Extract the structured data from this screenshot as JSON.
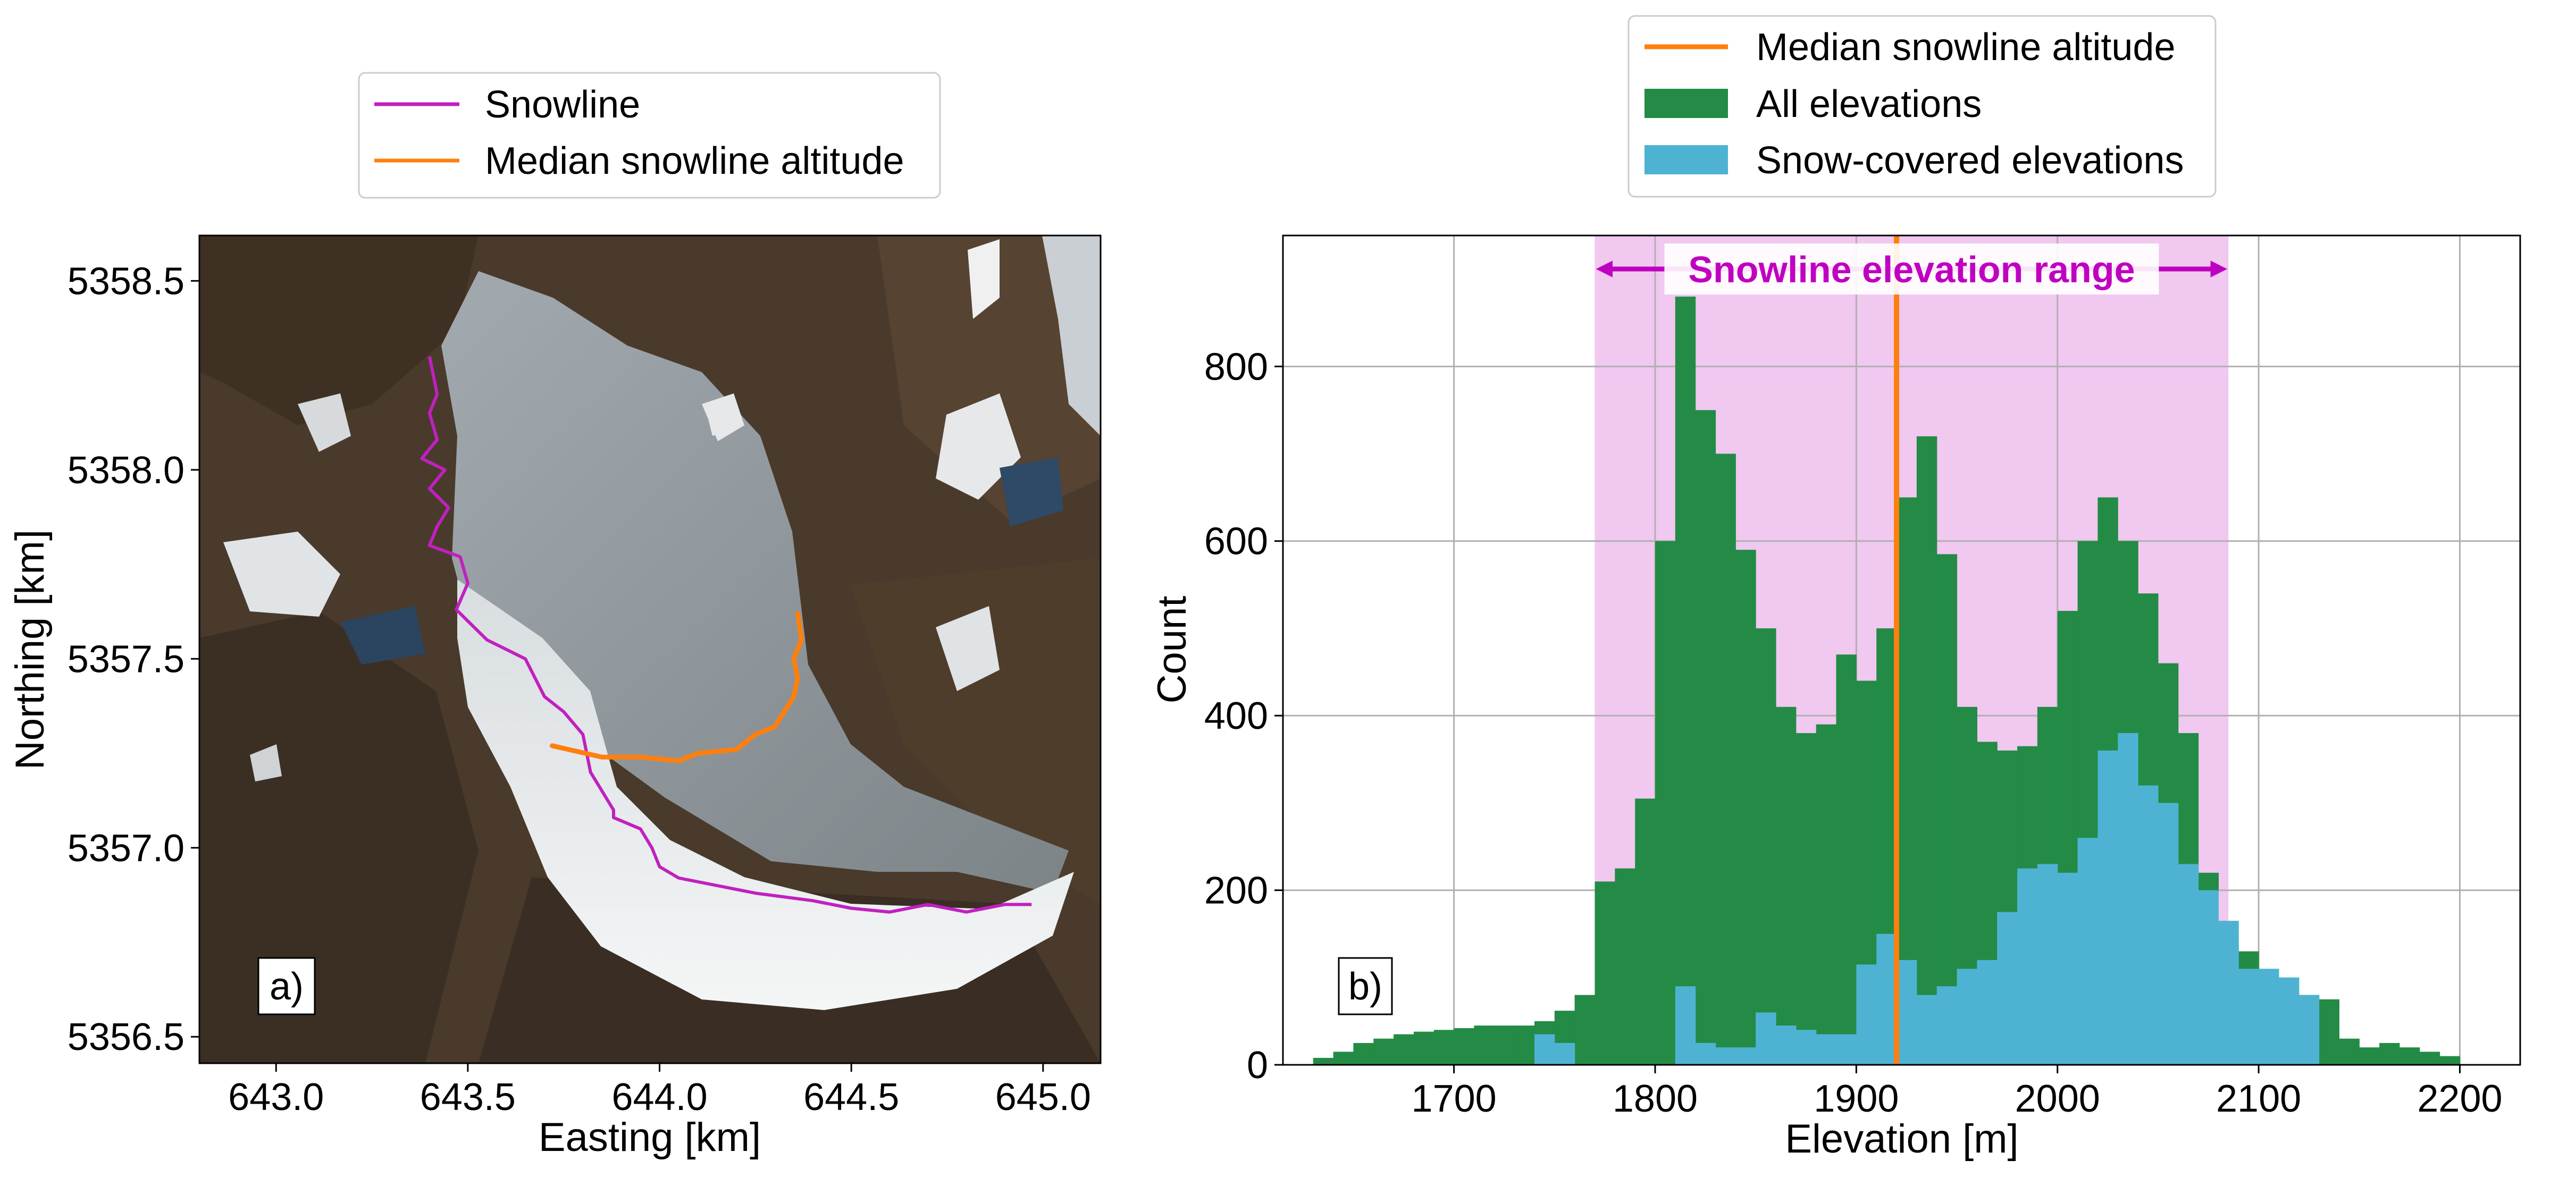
{
  "chart_data": [
    {
      "type": "map",
      "panel_label": "a)",
      "xlabel": "Easting [km]",
      "ylabel": "Northing [km]",
      "xlim": [
        642.8,
        645.15
      ],
      "ylim": [
        5356.43,
        5358.62
      ],
      "xticks": [
        643.0,
        643.5,
        644.0,
        644.5,
        645.0
      ],
      "xtick_labels": [
        "643.0",
        "643.5",
        "644.0",
        "644.5",
        "645.0"
      ],
      "yticks": [
        5356.5,
        5357.0,
        5357.5,
        5358.0,
        5358.5
      ],
      "ytick_labels": [
        "5356.5",
        "5357.0",
        "5357.5",
        "5358.0",
        "5358.5"
      ],
      "legend": {
        "placement": "above",
        "entries": [
          {
            "label": "Snowline",
            "color": "#c020c0"
          },
          {
            "label": "Median snowline altitude",
            "color": "#ff7f0e"
          }
        ]
      },
      "series": [
        {
          "name": "Snowline",
          "color": "#c020c0",
          "x": [
            643.4,
            643.42,
            643.4,
            643.42,
            643.38,
            643.44,
            643.4,
            643.45,
            643.42,
            643.4,
            643.48,
            643.5,
            643.47,
            643.5,
            643.55,
            643.65,
            643.7,
            643.75,
            643.8,
            643.82,
            643.88,
            643.88,
            643.95,
            643.98,
            644.0,
            644.05,
            644.15,
            644.25,
            644.4,
            644.5,
            644.6,
            644.7,
            644.8,
            644.9,
            644.97
          ],
          "y": [
            5358.3,
            5358.2,
            5358.15,
            5358.08,
            5358.03,
            5358.0,
            5357.95,
            5357.9,
            5357.85,
            5357.8,
            5357.77,
            5357.7,
            5357.63,
            5357.6,
            5357.55,
            5357.5,
            5357.4,
            5357.36,
            5357.3,
            5357.2,
            5357.1,
            5357.08,
            5357.05,
            5357.0,
            5356.95,
            5356.92,
            5356.9,
            5356.88,
            5356.86,
            5356.84,
            5356.83,
            5356.85,
            5356.83,
            5356.85,
            5356.85
          ]
        },
        {
          "name": "Median snowline altitude",
          "color": "#ff7f0e",
          "x": [
            643.72,
            643.85,
            643.95,
            644.05,
            644.1,
            644.2,
            644.25,
            644.3,
            644.35,
            644.36,
            644.35,
            644.37,
            644.36
          ],
          "y": [
            5357.27,
            5357.24,
            5357.24,
            5357.23,
            5357.25,
            5357.26,
            5357.3,
            5357.32,
            5357.4,
            5357.45,
            5357.5,
            5357.55,
            5357.62
          ]
        }
      ],
      "image": "satellite imagery of a glacier (snow-covered lower tongue, bare ice upper area, surrounding rock)"
    },
    {
      "type": "bar",
      "panel_label": "b)",
      "xlabel": "Elevation [m]",
      "ylabel": "Count",
      "xlim": [
        1615,
        2230
      ],
      "ylim": [
        0,
        950
      ],
      "xticks": [
        1700,
        1800,
        1900,
        2000,
        2100,
        2200
      ],
      "xtick_labels": [
        "1700",
        "1800",
        "1900",
        "2000",
        "2100",
        "2200"
      ],
      "yticks": [
        0,
        200,
        400,
        600,
        800
      ],
      "ytick_labels": [
        "0",
        "200",
        "400",
        "600",
        "800"
      ],
      "grid": true,
      "bin_start": 1630,
      "bin_width": 10,
      "median_snowline_altitude": 1920,
      "snowline_elevation_range": [
        1770,
        2085
      ],
      "range_label": "Snowline elevation range",
      "range_color": "#c000c0",
      "range_fill": "#f0c8f0",
      "legend": {
        "placement": "above",
        "entries": [
          {
            "label": "Median snowline altitude",
            "color": "#ff7f0e",
            "kind": "line"
          },
          {
            "label": "All elevations",
            "color": "#238b45",
            "kind": "patch"
          },
          {
            "label": "Snow-covered elevations",
            "color": "#4eb3d3",
            "kind": "patch"
          }
        ]
      },
      "series": [
        {
          "name": "All elevations",
          "color": "#238b45",
          "values": [
            8,
            15,
            25,
            30,
            35,
            38,
            40,
            42,
            45,
            45,
            45,
            50,
            62,
            80,
            210,
            225,
            305,
            600,
            880,
            750,
            700,
            590,
            500,
            410,
            380,
            390,
            470,
            440,
            500,
            650,
            720,
            585,
            410,
            370,
            360,
            365,
            410,
            520,
            600,
            650,
            600,
            540,
            460,
            380,
            220,
            140,
            130,
            110,
            100,
            80,
            75,
            30,
            20,
            25,
            20,
            15,
            10
          ]
        },
        {
          "name": "Snow-covered elevations",
          "color": "#4eb3d3",
          "values": [
            0,
            0,
            0,
            0,
            0,
            0,
            0,
            0,
            0,
            0,
            0,
            35,
            25,
            0,
            0,
            0,
            0,
            0,
            90,
            25,
            20,
            20,
            60,
            45,
            40,
            35,
            35,
            115,
            150,
            120,
            80,
            90,
            110,
            120,
            175,
            225,
            230,
            220,
            260,
            360,
            380,
            320,
            300,
            230,
            200,
            165,
            110,
            110,
            100,
            80,
            0,
            0,
            0,
            0,
            0,
            0,
            0
          ]
        }
      ]
    }
  ]
}
